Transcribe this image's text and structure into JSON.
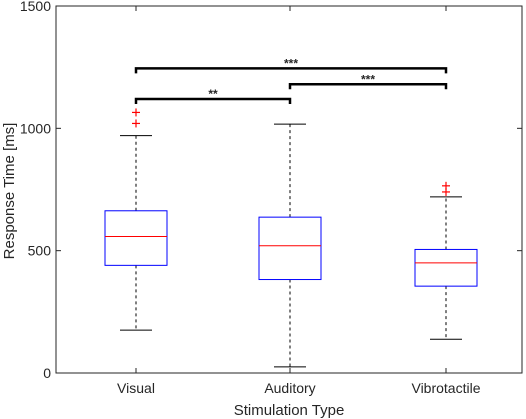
{
  "chart_data": {
    "type": "box",
    "xlabel": "Stimulation Type",
    "ylabel": "Response Time [ms]",
    "ylim": [
      0,
      1500
    ],
    "yticks": [
      0,
      500,
      1000,
      1500
    ],
    "categories": [
      "Visual",
      "Auditory",
      "Vibrotactile"
    ],
    "boxes": [
      {
        "category": "Visual",
        "whisker_low": 175,
        "q1": 440,
        "median": 558,
        "q3": 663,
        "whisker_high": 970,
        "outliers": [
          1020,
          1065
        ]
      },
      {
        "category": "Auditory",
        "whisker_low": 25,
        "q1": 382,
        "median": 520,
        "q3": 637,
        "whisker_high": 1017,
        "outliers": []
      },
      {
        "category": "Vibrotactile",
        "whisker_low": 138,
        "q1": 355,
        "median": 450,
        "q3": 505,
        "whisker_high": 720,
        "outliers": [
          740,
          765
        ]
      }
    ],
    "significance": [
      {
        "from": "Visual",
        "to": "Auditory",
        "y": 1120,
        "label": "**"
      },
      {
        "from": "Auditory",
        "to": "Vibrotactile",
        "y": 1180,
        "label": "***"
      },
      {
        "from": "Visual",
        "to": "Vibrotactile",
        "y": 1245,
        "label": "***"
      }
    ],
    "colors": {
      "box": "#0000ff",
      "median": "#ff0000",
      "outlier": "#ff0000",
      "whisker": "#000000",
      "bracket": "#000000"
    },
    "grid": false
  }
}
